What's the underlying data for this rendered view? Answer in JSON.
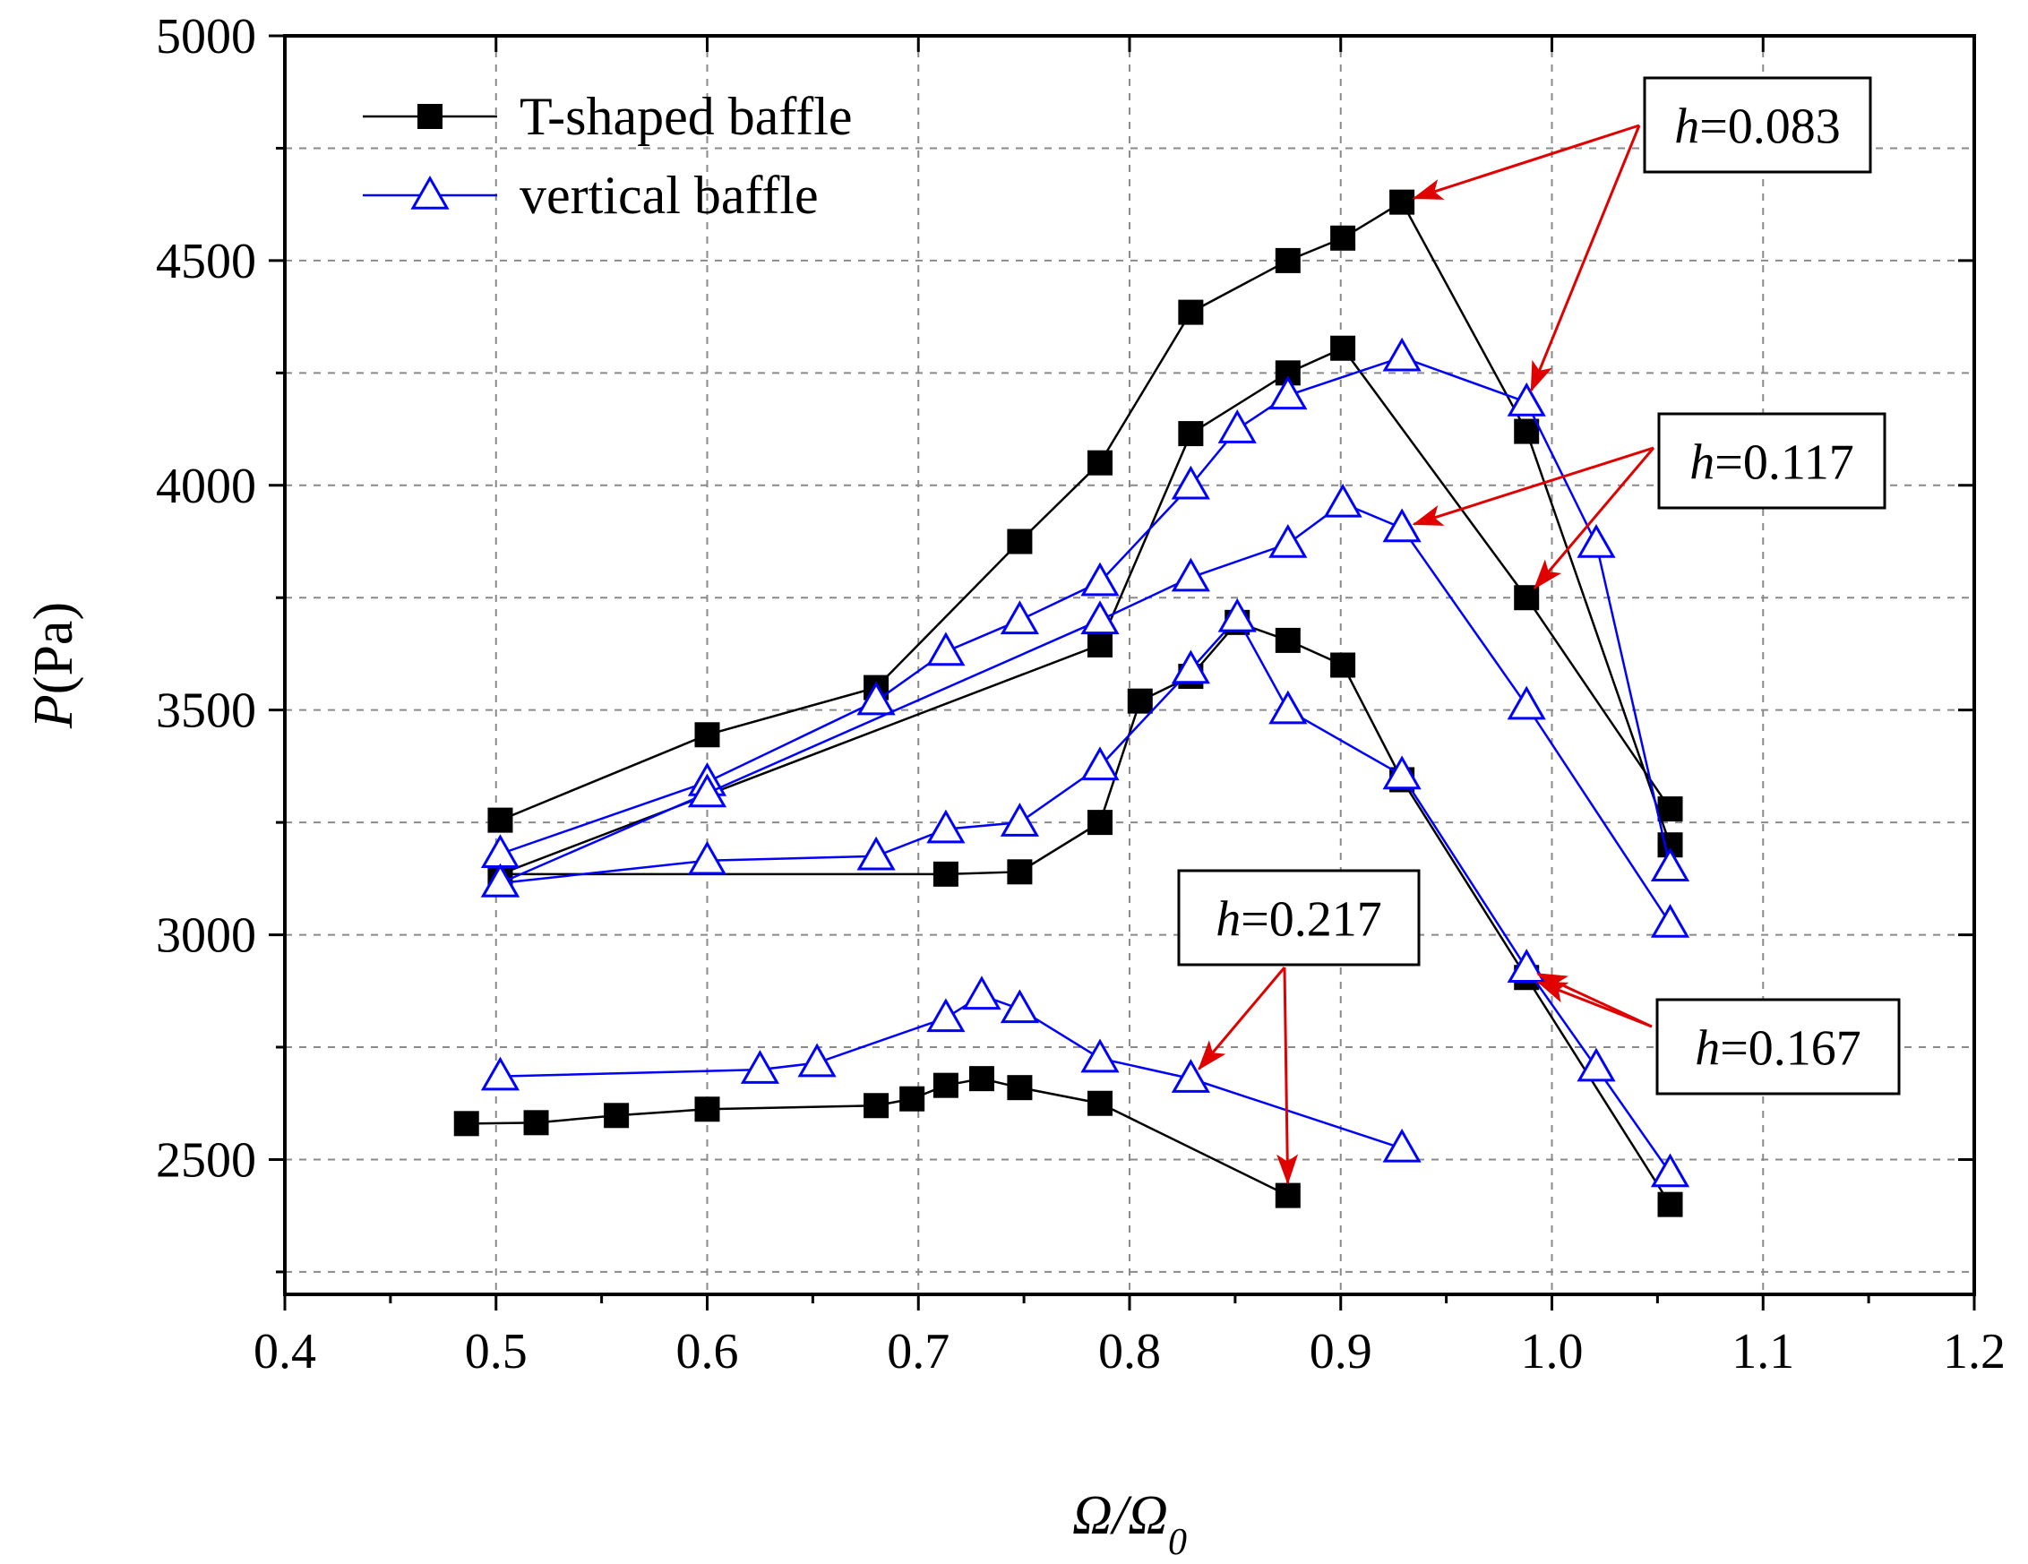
{
  "chart_data": {
    "type": "line",
    "title": "",
    "xlabel": {
      "main": "Ω/Ω",
      "sub": "0"
    },
    "ylabel": {
      "italic": "P",
      "rest": "(Pa)"
    },
    "xlim": [
      0.4,
      1.2
    ],
    "ylim": [
      2200,
      5000
    ],
    "x_ticks": [
      "0.4",
      "0.5",
      "0.6",
      "0.7",
      "0.8",
      "0.9",
      "1.0",
      "1.1",
      "1.2"
    ],
    "y_ticks": [
      "2500",
      "3000",
      "3500",
      "4000",
      "4500",
      "5000"
    ],
    "grid": true,
    "legend_position": "top-left",
    "legend": [
      {
        "label": "T-shaped baffle",
        "marker": "square",
        "color": "#000000"
      },
      {
        "label": "vertical baffle",
        "marker": "triangle",
        "color": "#0000ff"
      }
    ],
    "series": [
      {
        "group": "T-shaped baffle",
        "h": "0.083",
        "marker": "square",
        "color": "#000000",
        "points": [
          [
            0.502,
            3255
          ],
          [
            0.6,
            3445
          ],
          [
            0.68,
            3550
          ],
          [
            0.748,
            3875
          ],
          [
            0.786,
            4050
          ],
          [
            0.829,
            4385
          ],
          [
            0.875,
            4500
          ],
          [
            0.901,
            4550
          ],
          [
            0.929,
            4630
          ],
          [
            0.988,
            4120
          ],
          [
            1.056,
            3200
          ]
        ]
      },
      {
        "group": "T-shaped baffle",
        "h": "0.117",
        "marker": "square",
        "color": "#000000",
        "points": [
          [
            0.502,
            3135
          ],
          [
            0.786,
            3645
          ],
          [
            0.829,
            4115
          ],
          [
            0.875,
            4250
          ],
          [
            0.901,
            4305
          ],
          [
            0.988,
            3750
          ],
          [
            1.056,
            3280
          ]
        ]
      },
      {
        "group": "T-shaped baffle",
        "h": "0.167",
        "marker": "square",
        "color": "#000000",
        "points": [
          [
            0.502,
            3135
          ],
          [
            0.713,
            3135
          ],
          [
            0.748,
            3140
          ],
          [
            0.786,
            3250
          ],
          [
            0.805,
            3520
          ],
          [
            0.829,
            3575
          ],
          [
            0.851,
            3695
          ],
          [
            0.875,
            3655
          ],
          [
            0.901,
            3600
          ],
          [
            0.929,
            3345
          ],
          [
            0.988,
            2905
          ],
          [
            1.056,
            2400
          ]
        ]
      },
      {
        "group": "T-shaped baffle",
        "h": "0.217",
        "marker": "square",
        "color": "#000000",
        "points": [
          [
            0.486,
            2580
          ],
          [
            0.519,
            2582
          ],
          [
            0.557,
            2598
          ],
          [
            0.6,
            2612
          ],
          [
            0.68,
            2620
          ],
          [
            0.697,
            2635
          ],
          [
            0.713,
            2665
          ],
          [
            0.73,
            2680
          ],
          [
            0.748,
            2660
          ],
          [
            0.786,
            2625
          ],
          [
            0.875,
            2420
          ]
        ]
      },
      {
        "group": "vertical baffle",
        "h": "0.083",
        "marker": "triangle",
        "color": "#0000ff",
        "points": [
          [
            0.502,
            3180
          ],
          [
            0.6,
            3340
          ],
          [
            0.68,
            3520
          ],
          [
            0.713,
            3630
          ],
          [
            0.748,
            3700
          ],
          [
            0.786,
            3785
          ],
          [
            0.829,
            4000
          ],
          [
            0.851,
            4125
          ],
          [
            0.875,
            4200
          ],
          [
            0.929,
            4285
          ],
          [
            0.988,
            4185
          ],
          [
            1.021,
            3870
          ],
          [
            1.056,
            3150
          ]
        ]
      },
      {
        "group": "vertical baffle",
        "h": "0.117",
        "marker": "triangle",
        "color": "#0000ff",
        "points": [
          [
            0.502,
            3115
          ],
          [
            0.6,
            3315
          ],
          [
            0.786,
            3700
          ],
          [
            0.829,
            3795
          ],
          [
            0.875,
            3870
          ],
          [
            0.901,
            3960
          ],
          [
            0.929,
            3905
          ],
          [
            0.988,
            3510
          ],
          [
            1.056,
            3025
          ]
        ]
      },
      {
        "group": "vertical baffle",
        "h": "0.167",
        "marker": "triangle",
        "color": "#0000ff",
        "points": [
          [
            0.502,
            3115
          ],
          [
            0.6,
            3165
          ],
          [
            0.68,
            3175
          ],
          [
            0.713,
            3235
          ],
          [
            0.748,
            3250
          ],
          [
            0.786,
            3375
          ],
          [
            0.829,
            3590
          ],
          [
            0.851,
            3705
          ],
          [
            0.875,
            3500
          ],
          [
            0.929,
            3355
          ],
          [
            0.988,
            2925
          ],
          [
            1.021,
            2705
          ],
          [
            1.056,
            2470
          ]
        ]
      },
      {
        "group": "vertical baffle",
        "h": "0.217",
        "marker": "triangle",
        "color": "#0000ff",
        "points": [
          [
            0.502,
            2685
          ],
          [
            0.625,
            2700
          ],
          [
            0.652,
            2715
          ],
          [
            0.713,
            2815
          ],
          [
            0.73,
            2865
          ],
          [
            0.748,
            2835
          ],
          [
            0.786,
            2725
          ],
          [
            0.829,
            2680
          ],
          [
            0.929,
            2525
          ]
        ]
      }
    ],
    "annotations": [
      {
        "italic": "h",
        "rest": "=0.083",
        "targets": [
          [
            0.929,
            4630
          ],
          [
            0.988,
            4185
          ]
        ]
      },
      {
        "italic": "h",
        "rest": "=0.117",
        "targets": [
          [
            0.929,
            3905
          ],
          [
            0.988,
            3750
          ]
        ]
      },
      {
        "italic": "h",
        "rest": "=0.167",
        "targets": [
          [
            0.988,
            2905
          ],
          [
            0.988,
            2925
          ]
        ]
      },
      {
        "italic": "h",
        "rest": "=0.217",
        "targets": [
          [
            0.829,
            2680
          ],
          [
            0.875,
            2420
          ]
        ]
      }
    ]
  }
}
